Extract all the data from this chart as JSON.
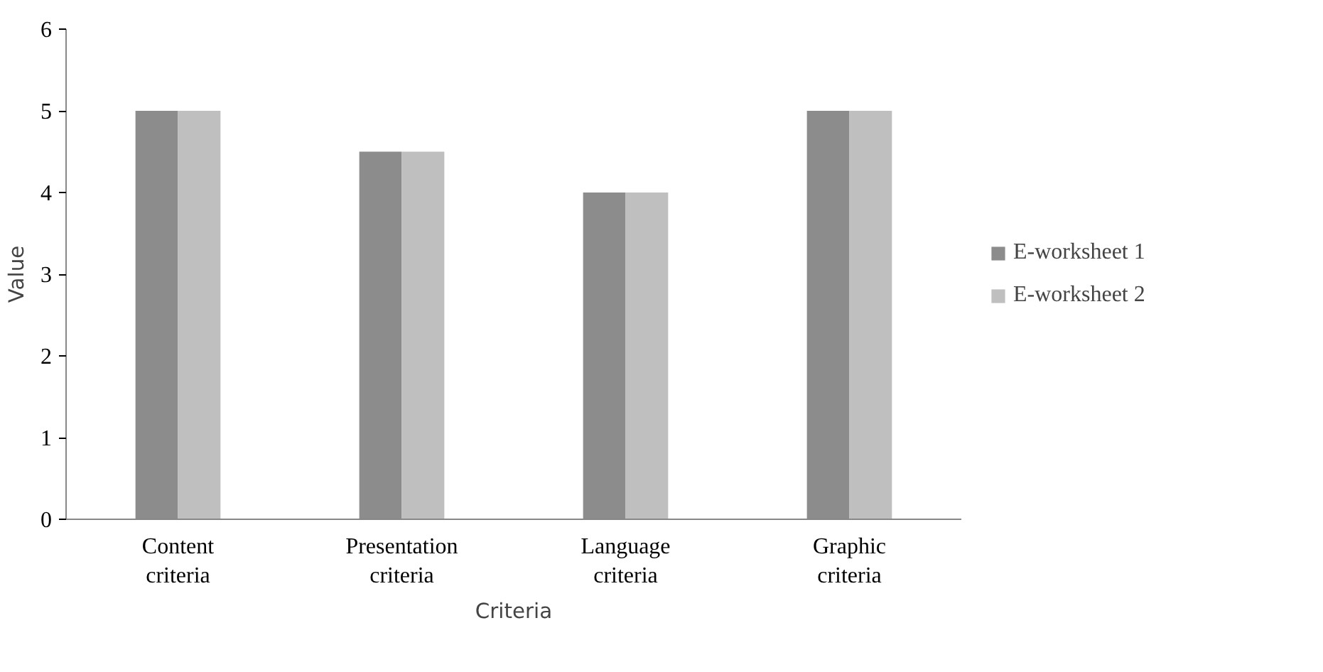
{
  "chart_data": {
    "type": "bar",
    "xlabel": "Criteria",
    "ylabel": "Value",
    "categories": [
      "Content criteria",
      "Presentation criteria",
      "Language criteria",
      "Graphic criteria"
    ],
    "series": [
      {
        "name": "E-worksheet 1",
        "color": "#8c8c8c",
        "values": [
          5,
          4.5,
          4,
          5
        ]
      },
      {
        "name": "E-worksheet 2",
        "color": "#bfbfbf",
        "values": [
          5,
          4.5,
          4,
          5
        ]
      }
    ],
    "ylim": [
      0,
      6
    ],
    "yticks": [
      0,
      1,
      2,
      3,
      4,
      5,
      6
    ],
    "grid": false,
    "legend": "right"
  }
}
